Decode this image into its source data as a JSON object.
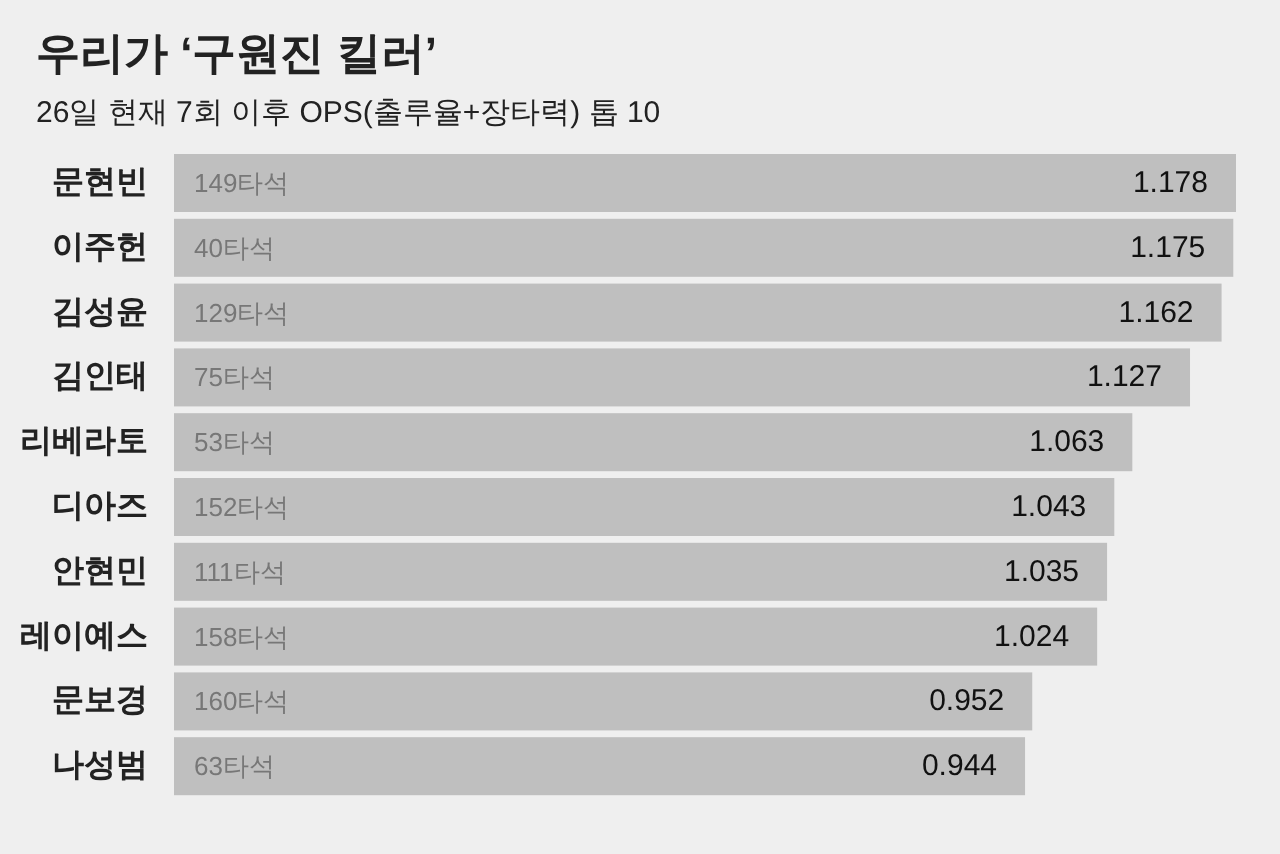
{
  "chart_data": {
    "type": "bar",
    "orientation": "horizontal",
    "title": "우리가 ‘구원진 킬러’",
    "subtitle": "26일 현재 7회 이후 OPS(출루율+장타력) 톱 10",
    "categories": [
      "문현빈",
      "이주헌",
      "김성윤",
      "김인태",
      "리베라토",
      "디아즈",
      "안현민",
      "레이예스",
      "문보경",
      "나성범"
    ],
    "values": [
      1.178,
      1.175,
      1.162,
      1.127,
      1.063,
      1.043,
      1.035,
      1.024,
      0.952,
      0.944
    ],
    "color": "#bfbfbf",
    "data_labels": true,
    "annotations": [
      {
        "text": "149타석",
        "y": "문현빈"
      },
      {
        "text": "40타석",
        "y": "이주헌"
      },
      {
        "text": "129타석",
        "y": "김성윤"
      },
      {
        "text": "75타석",
        "y": "김인태"
      },
      {
        "text": "53타석",
        "y": "리베라토"
      },
      {
        "text": "152타석",
        "y": "디아즈"
      },
      {
        "text": "111타석",
        "y": "안현민"
      },
      {
        "text": "158타석",
        "y": "레이예스"
      },
      {
        "text": "160타석",
        "y": "문보경"
      },
      {
        "text": "63타석",
        "y": "나성범"
      }
    ]
  }
}
